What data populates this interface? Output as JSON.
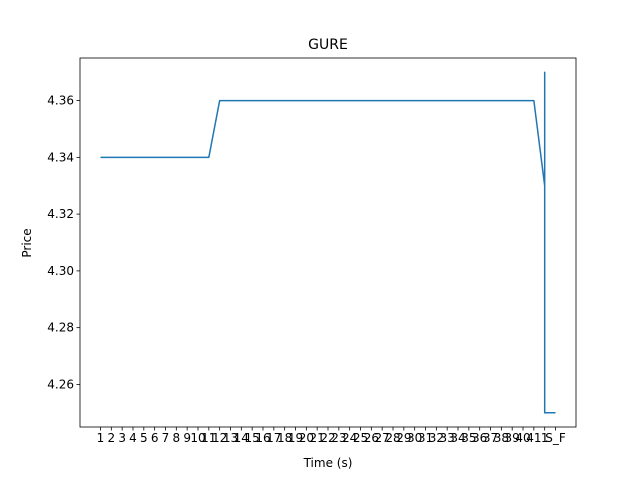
{
  "chart_data": {
    "type": "line",
    "title": "GURE",
    "xlabel": "Time (s)",
    "ylabel": "Price",
    "categories": [
      "1",
      "2",
      "3",
      "4",
      "5",
      "6",
      "7",
      "8",
      "9",
      "10",
      "11",
      "12",
      "13",
      "14",
      "15",
      "16",
      "17",
      "18",
      "19",
      "20",
      "21",
      "22",
      "23",
      "24",
      "25",
      "26",
      "27",
      "28",
      "29",
      "30",
      "31",
      "32",
      "33",
      "34",
      "35",
      "36",
      "37",
      "38",
      "39",
      "40",
      "41",
      "1",
      "S_F"
    ],
    "points": [
      {
        "x": "1",
        "y": 4.34
      },
      {
        "x": "11",
        "y": 4.34
      },
      {
        "x": "12",
        "y": 4.36
      },
      {
        "x": "41",
        "y": 4.36
      },
      {
        "x": "1",
        "y": 4.33
      },
      {
        "x": "1",
        "y": 4.37
      },
      {
        "x": "1",
        "y": 4.25
      },
      {
        "x": "S_F",
        "y": 4.25
      }
    ],
    "ylim": [
      4.245,
      4.375
    ],
    "yticks": [
      "4.26",
      "4.28",
      "4.30",
      "4.32",
      "4.34",
      "4.36"
    ],
    "line_color": "#1f77b4",
    "grid": false
  }
}
